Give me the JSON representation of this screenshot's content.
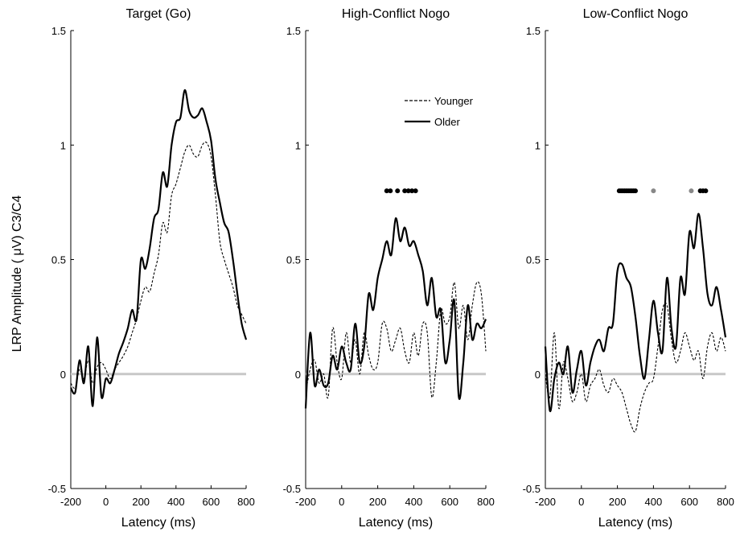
{
  "figure": {
    "ylabel": "LRP Amplitude ( μV) C3/C4"
  },
  "chart_data": [
    {
      "type": "line",
      "title": "Target (Go)",
      "xlabel": "Latency (ms)",
      "xlim": [
        -200,
        800
      ],
      "ylim": [
        -0.5,
        1.5
      ],
      "xticks": [
        "-200",
        "0",
        "200",
        "400",
        "600",
        "800"
      ],
      "yticks": [
        "-0.5",
        "0",
        "0.5",
        "1",
        "1.5"
      ],
      "baseline": {
        "y": 0,
        "color": "#c8c8c8"
      },
      "series": [
        {
          "name": "Younger",
          "style": "dashed",
          "x": [
            -200,
            -175,
            -150,
            -125,
            -100,
            -75,
            -50,
            -25,
            0,
            25,
            50,
            75,
            100,
            125,
            150,
            175,
            200,
            225,
            250,
            275,
            300,
            325,
            350,
            375,
            400,
            425,
            450,
            475,
            500,
            525,
            550,
            575,
            600,
            625,
            650,
            675,
            700,
            725,
            750,
            775,
            800
          ],
          "y": [
            -0.04,
            -0.06,
            0.02,
            -0.02,
            0.06,
            -0.04,
            0.03,
            0.05,
            0.02,
            -0.02,
            0.02,
            0.05,
            0.08,
            0.12,
            0.18,
            0.24,
            0.32,
            0.38,
            0.36,
            0.44,
            0.52,
            0.66,
            0.62,
            0.78,
            0.83,
            0.9,
            0.97,
            1.0,
            0.96,
            0.95,
            1.0,
            1.01,
            0.95,
            0.78,
            0.58,
            0.5,
            0.44,
            0.38,
            0.3,
            0.26,
            0.22
          ]
        },
        {
          "name": "Older",
          "style": "solid",
          "x": [
            -200,
            -175,
            -150,
            -125,
            -100,
            -75,
            -50,
            -25,
            0,
            25,
            50,
            75,
            100,
            125,
            150,
            175,
            200,
            225,
            250,
            275,
            300,
            325,
            350,
            375,
            400,
            425,
            450,
            475,
            500,
            525,
            550,
            575,
            600,
            625,
            650,
            675,
            700,
            725,
            750,
            775,
            800
          ],
          "y": [
            -0.06,
            -0.08,
            0.06,
            -0.04,
            0.12,
            -0.14,
            0.16,
            -0.1,
            -0.02,
            -0.04,
            0.02,
            0.09,
            0.14,
            0.2,
            0.28,
            0.24,
            0.5,
            0.46,
            0.55,
            0.68,
            0.72,
            0.88,
            0.82,
            1.0,
            1.1,
            1.12,
            1.24,
            1.15,
            1.12,
            1.13,
            1.16,
            1.1,
            1.02,
            0.85,
            0.75,
            0.66,
            0.62,
            0.5,
            0.35,
            0.22,
            0.15
          ]
        }
      ]
    },
    {
      "type": "line",
      "title": "High-Conflict Nogo",
      "xlabel": "Latency (ms)",
      "xlim": [
        -200,
        800
      ],
      "ylim": [
        -0.5,
        1.5
      ],
      "xticks": [
        "-200",
        "0",
        "200",
        "400",
        "600",
        "800"
      ],
      "yticks": [
        "-0.5",
        "0",
        "0.5",
        "1",
        "1.5"
      ],
      "baseline": {
        "y": 0,
        "color": "#c8c8c8"
      },
      "legend": {
        "placement": "upper-center",
        "entries": [
          {
            "label": "Younger",
            "style": "dashed"
          },
          {
            "label": "Older",
            "style": "solid"
          }
        ]
      },
      "significance": {
        "y": 0.8,
        "x": [
          250,
          270,
          310,
          350,
          370,
          390,
          410
        ],
        "color": "#000000"
      },
      "series": [
        {
          "name": "Younger",
          "style": "dashed",
          "x": [
            -200,
            -175,
            -150,
            -125,
            -100,
            -75,
            -50,
            -25,
            0,
            25,
            50,
            75,
            100,
            125,
            150,
            175,
            200,
            225,
            250,
            275,
            300,
            325,
            350,
            375,
            400,
            425,
            450,
            475,
            500,
            525,
            550,
            575,
            600,
            625,
            650,
            675,
            700,
            725,
            750,
            775,
            800
          ],
          "y": [
            -0.08,
            0.02,
            0.06,
            -0.04,
            0.0,
            -0.1,
            0.2,
            0.05,
            -0.02,
            0.18,
            0.05,
            0.15,
            0.0,
            0.18,
            0.08,
            0.02,
            0.05,
            0.22,
            0.2,
            0.1,
            0.15,
            0.2,
            0.1,
            0.05,
            0.18,
            0.08,
            0.22,
            0.18,
            -0.1,
            0.05,
            0.28,
            0.22,
            0.25,
            0.4,
            0.2,
            0.3,
            0.15,
            0.3,
            0.4,
            0.35,
            0.1
          ]
        },
        {
          "name": "Older",
          "style": "solid",
          "x": [
            -200,
            -175,
            -150,
            -125,
            -100,
            -75,
            -50,
            -25,
            0,
            25,
            50,
            75,
            100,
            125,
            150,
            175,
            200,
            225,
            250,
            275,
            300,
            325,
            350,
            375,
            400,
            425,
            450,
            475,
            500,
            525,
            550,
            575,
            600,
            625,
            650,
            675,
            700,
            725,
            750,
            775,
            800
          ],
          "y": [
            -0.15,
            0.18,
            -0.05,
            0.02,
            -0.05,
            -0.04,
            0.08,
            0.02,
            0.12,
            0.05,
            0.02,
            0.22,
            0.05,
            0.12,
            0.35,
            0.28,
            0.42,
            0.5,
            0.58,
            0.52,
            0.68,
            0.58,
            0.64,
            0.56,
            0.58,
            0.52,
            0.45,
            0.3,
            0.42,
            0.25,
            0.28,
            0.05,
            0.15,
            0.32,
            -0.1,
            0.05,
            0.3,
            0.15,
            0.22,
            0.2,
            0.24
          ]
        }
      ]
    },
    {
      "type": "line",
      "title": "Low-Conflict Nogo",
      "xlabel": "Latency (ms)",
      "xlim": [
        -200,
        800
      ],
      "ylim": [
        -0.5,
        1.5
      ],
      "xticks": [
        "-200",
        "0",
        "200",
        "400",
        "600",
        "800"
      ],
      "yticks": [
        "-0.5",
        "0",
        "0.5",
        "1",
        "1.5"
      ],
      "baseline": {
        "y": 0,
        "color": "#c8c8c8"
      },
      "significance": [
        {
          "y": 0.8,
          "x": [
            210,
            220,
            230,
            240,
            250,
            260,
            270,
            280,
            290,
            300
          ],
          "color": "#000000"
        },
        {
          "y": 0.8,
          "x": [
            400,
            610
          ],
          "color": "#888888"
        },
        {
          "y": 0.8,
          "x": [
            660,
            675,
            690
          ],
          "color": "#000000"
        }
      ],
      "series": [
        {
          "name": "Younger",
          "style": "dashed",
          "x": [
            -200,
            -175,
            -150,
            -125,
            -100,
            -75,
            -50,
            -25,
            0,
            25,
            50,
            75,
            100,
            125,
            150,
            175,
            200,
            225,
            250,
            275,
            300,
            325,
            350,
            375,
            400,
            425,
            450,
            475,
            500,
            525,
            550,
            575,
            600,
            625,
            650,
            675,
            700,
            725,
            750,
            775,
            800
          ],
          "y": [
            0.0,
            -0.1,
            0.18,
            -0.15,
            0.05,
            -0.02,
            -0.12,
            -0.08,
            0.0,
            -0.12,
            -0.05,
            -0.02,
            0.02,
            -0.05,
            -0.08,
            -0.02,
            -0.05,
            -0.08,
            -0.15,
            -0.22,
            -0.25,
            -0.15,
            -0.08,
            -0.04,
            -0.02,
            0.12,
            0.28,
            0.3,
            0.15,
            0.05,
            0.1,
            0.18,
            0.12,
            0.06,
            0.1,
            -0.02,
            0.12,
            0.18,
            0.1,
            0.16,
            0.1
          ]
        },
        {
          "name": "Older",
          "style": "solid",
          "x": [
            -200,
            -175,
            -150,
            -125,
            -100,
            -75,
            -50,
            -25,
            0,
            25,
            50,
            75,
            100,
            125,
            150,
            175,
            200,
            225,
            250,
            275,
            300,
            325,
            350,
            375,
            400,
            425,
            450,
            475,
            500,
            525,
            550,
            575,
            600,
            625,
            650,
            675,
            700,
            725,
            750,
            775,
            800
          ],
          "y": [
            0.12,
            -0.16,
            -0.02,
            0.05,
            0.0,
            0.12,
            -0.08,
            0.02,
            0.1,
            -0.05,
            0.05,
            0.12,
            0.15,
            0.1,
            0.2,
            0.22,
            0.45,
            0.48,
            0.42,
            0.38,
            0.25,
            0.08,
            -0.02,
            0.15,
            0.32,
            0.18,
            0.1,
            0.42,
            0.2,
            0.12,
            0.42,
            0.35,
            0.62,
            0.55,
            0.7,
            0.55,
            0.35,
            0.3,
            0.38,
            0.28,
            0.16
          ]
        }
      ]
    }
  ]
}
